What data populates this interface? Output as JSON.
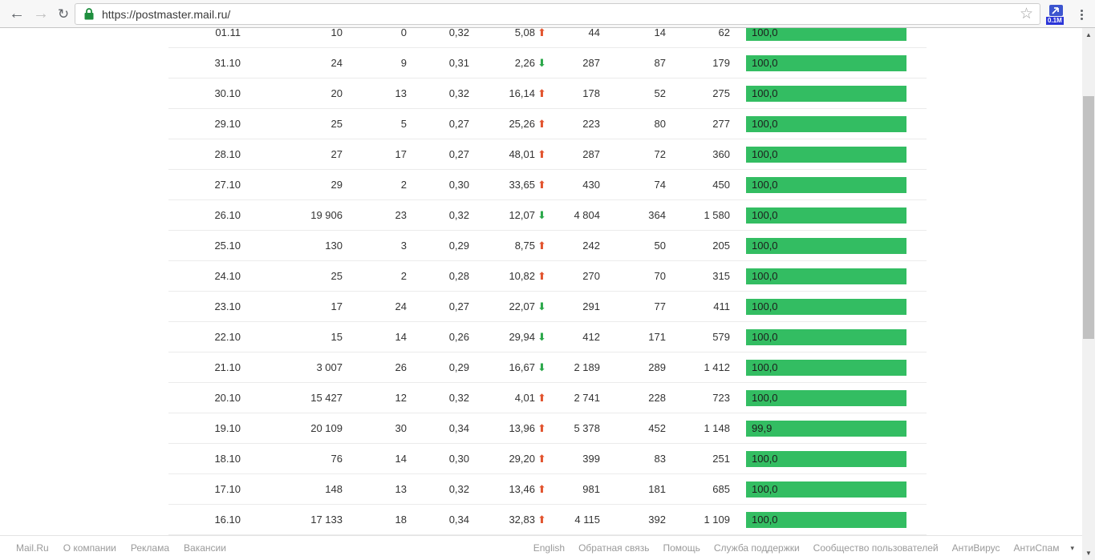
{
  "browser": {
    "url": "https://postmaster.mail.ru/",
    "extension_badge": "0.1M"
  },
  "colors": {
    "bar_green": "#33bd62",
    "up_arrow_red": "#e2542f",
    "down_arrow_green": "#2ba84a",
    "lock_green": "#1e8e3e",
    "badge_blue": "#2b35d8"
  },
  "chart_data": {
    "type": "table",
    "columns": [
      "date",
      "v1",
      "v2",
      "v3",
      "delta_percent",
      "v5",
      "v6",
      "v7",
      "quality_percent"
    ],
    "rows": [
      {
        "date": "01.11",
        "v1": "10",
        "v2": "0",
        "v3": "0,32",
        "delta": "5,08",
        "dir": "up",
        "v5": "44",
        "v6": "14",
        "v7": "62",
        "bar": "100,0",
        "pct": 100
      },
      {
        "date": "31.10",
        "v1": "24",
        "v2": "9",
        "v3": "0,31",
        "delta": "2,26",
        "dir": "down",
        "v5": "287",
        "v6": "87",
        "v7": "179",
        "bar": "100,0",
        "pct": 100
      },
      {
        "date": "30.10",
        "v1": "20",
        "v2": "13",
        "v3": "0,32",
        "delta": "16,14",
        "dir": "up",
        "v5": "178",
        "v6": "52",
        "v7": "275",
        "bar": "100,0",
        "pct": 100
      },
      {
        "date": "29.10",
        "v1": "25",
        "v2": "5",
        "v3": "0,27",
        "delta": "25,26",
        "dir": "up",
        "v5": "223",
        "v6": "80",
        "v7": "277",
        "bar": "100,0",
        "pct": 100
      },
      {
        "date": "28.10",
        "v1": "27",
        "v2": "17",
        "v3": "0,27",
        "delta": "48,01",
        "dir": "up",
        "v5": "287",
        "v6": "72",
        "v7": "360",
        "bar": "100,0",
        "pct": 100
      },
      {
        "date": "27.10",
        "v1": "29",
        "v2": "2",
        "v3": "0,30",
        "delta": "33,65",
        "dir": "up",
        "v5": "430",
        "v6": "74",
        "v7": "450",
        "bar": "100,0",
        "pct": 100
      },
      {
        "date": "26.10",
        "v1": "19 906",
        "v2": "23",
        "v3": "0,32",
        "delta": "12,07",
        "dir": "down",
        "v5": "4 804",
        "v6": "364",
        "v7": "1 580",
        "bar": "100,0",
        "pct": 100
      },
      {
        "date": "25.10",
        "v1": "130",
        "v2": "3",
        "v3": "0,29",
        "delta": "8,75",
        "dir": "up",
        "v5": "242",
        "v6": "50",
        "v7": "205",
        "bar": "100,0",
        "pct": 100
      },
      {
        "date": "24.10",
        "v1": "25",
        "v2": "2",
        "v3": "0,28",
        "delta": "10,82",
        "dir": "up",
        "v5": "270",
        "v6": "70",
        "v7": "315",
        "bar": "100,0",
        "pct": 100
      },
      {
        "date": "23.10",
        "v1": "17",
        "v2": "24",
        "v3": "0,27",
        "delta": "22,07",
        "dir": "down",
        "v5": "291",
        "v6": "77",
        "v7": "411",
        "bar": "100,0",
        "pct": 100
      },
      {
        "date": "22.10",
        "v1": "15",
        "v2": "14",
        "v3": "0,26",
        "delta": "29,94",
        "dir": "down",
        "v5": "412",
        "v6": "171",
        "v7": "579",
        "bar": "100,0",
        "pct": 100
      },
      {
        "date": "21.10",
        "v1": "3 007",
        "v2": "26",
        "v3": "0,29",
        "delta": "16,67",
        "dir": "down",
        "v5": "2 189",
        "v6": "289",
        "v7": "1 412",
        "bar": "100,0",
        "pct": 100
      },
      {
        "date": "20.10",
        "v1": "15 427",
        "v2": "12",
        "v3": "0,32",
        "delta": "4,01",
        "dir": "up",
        "v5": "2 741",
        "v6": "228",
        "v7": "723",
        "bar": "100,0",
        "pct": 100
      },
      {
        "date": "19.10",
        "v1": "20 109",
        "v2": "30",
        "v3": "0,34",
        "delta": "13,96",
        "dir": "up",
        "v5": "5 378",
        "v6": "452",
        "v7": "1 148",
        "bar": "99,9",
        "pct": 99.9
      },
      {
        "date": "18.10",
        "v1": "76",
        "v2": "14",
        "v3": "0,30",
        "delta": "29,20",
        "dir": "up",
        "v5": "399",
        "v6": "83",
        "v7": "251",
        "bar": "100,0",
        "pct": 100
      },
      {
        "date": "17.10",
        "v1": "148",
        "v2": "13",
        "v3": "0,32",
        "delta": "13,46",
        "dir": "up",
        "v5": "981",
        "v6": "181",
        "v7": "685",
        "bar": "100,0",
        "pct": 100
      },
      {
        "date": "16.10",
        "v1": "17 133",
        "v2": "18",
        "v3": "0,34",
        "delta": "32,83",
        "dir": "up",
        "v5": "4 115",
        "v6": "392",
        "v7": "1 109",
        "bar": "100,0",
        "pct": 100
      }
    ]
  },
  "footer": {
    "left": [
      "Mail.Ru",
      "О компании",
      "Реклама",
      "Вакансии"
    ],
    "right": [
      "English",
      "Обратная связь",
      "Помощь",
      "Служба поддержки",
      "Сообщество пользователей",
      "АнтиВирус",
      "АнтиСпам"
    ]
  }
}
